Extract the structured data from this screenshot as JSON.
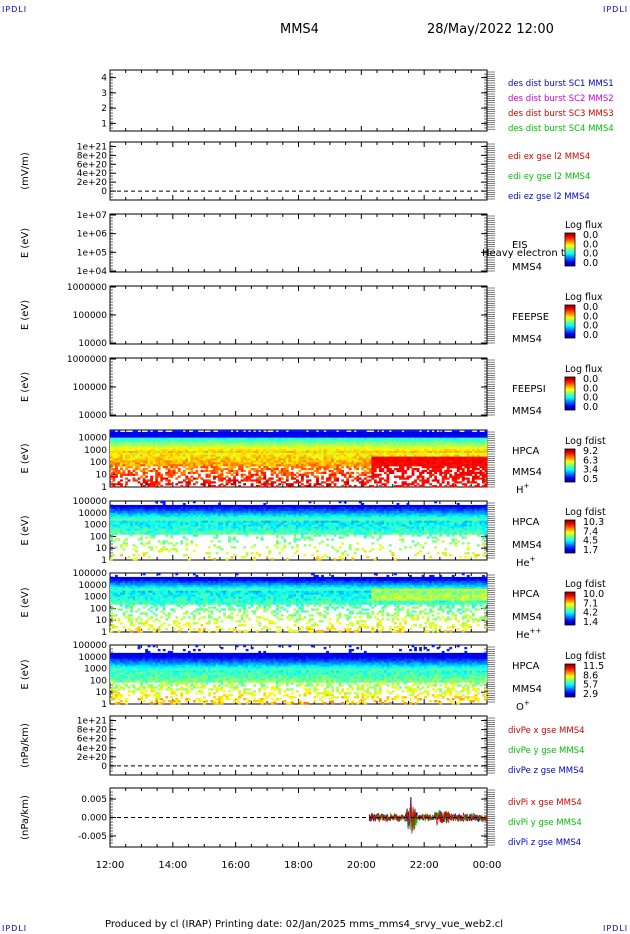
{
  "corners": {
    "tl": "IPDLI",
    "tr": "IPDLI",
    "bl": "IPDLI",
    "br": "IPDLI"
  },
  "header": {
    "spacecraft": "MMS4",
    "datetime": "28/May/2022 12:00"
  },
  "footer": "Produced by cl (IRAP)   Printing date: 02/Jan/2025   mms_mms4_srvy_vue_web2.cl",
  "colors": {
    "MMS1": "#0000c8",
    "MMS2": "#d000d0",
    "MMS3": "#d00000",
    "MMS4": "#00c000",
    "x": "#d00000",
    "y": "#00c000",
    "z": "#0000c8"
  },
  "chart_data": {
    "type": "multi-panel",
    "xlabel": "",
    "xticks": [
      "12:00",
      "14:00",
      "16:00",
      "18:00",
      "20:00",
      "22:00",
      "00:00"
    ],
    "xlim": [
      "12:00",
      "00:00"
    ],
    "panels": [
      {
        "id": "des-dist",
        "type": "line",
        "ylabel": "",
        "ylim": [
          0.5,
          4.5
        ],
        "yticks": [
          "1",
          "2",
          "3",
          "4"
        ],
        "legend": [
          {
            "name": "des dist burst SC1 MMS1",
            "color": "#0000c8"
          },
          {
            "name": "des dist burst SC2 MMS2",
            "color": "#d000d0"
          },
          {
            "name": "des dist burst SC3 MMS3",
            "color": "#d00000"
          },
          {
            "name": "des dist burst SC4 MMS4",
            "color": "#00c000"
          }
        ]
      },
      {
        "id": "edi",
        "type": "line",
        "ylabel": "(mV/m)",
        "ylim": [
          -2e+20,
          1.1e+21
        ],
        "yticks": [
          "1e+21",
          "8e+20",
          "6e+20",
          "4e+20",
          "2e+20",
          "0"
        ],
        "legend": [
          {
            "name": "edi ex gse l2 MMS4",
            "color": "#d00000"
          },
          {
            "name": "edi ey gse l2 MMS4",
            "color": "#00c000"
          },
          {
            "name": "edi ez gse l2 MMS4",
            "color": "#0000c8"
          }
        ]
      },
      {
        "id": "eis",
        "type": "heatmap",
        "ylabel": "E (eV)",
        "yticks": [
          "1e+07",
          "1e+06",
          "1e+05",
          "1e+04"
        ],
        "labels": [
          "EIS",
          "MMS4"
        ],
        "overlay": "Heavy electron to",
        "colorbar": {
          "title": "Log flux",
          "ticks": [
            "0.0",
            "0.0",
            "0.0",
            "0.0"
          ]
        }
      },
      {
        "id": "feepse",
        "type": "heatmap",
        "ylabel": "E (eV)",
        "yticks": [
          "1000000",
          "100000",
          "10000"
        ],
        "labels": [
          "FEEPSE",
          "MMS4"
        ],
        "colorbar": {
          "title": "Log flux",
          "ticks": [
            "0.0",
            "0.0",
            "0.0",
            "0.0"
          ]
        }
      },
      {
        "id": "feepsi",
        "type": "heatmap",
        "ylabel": "E (eV)",
        "yticks": [
          "1000000",
          "100000",
          "10000"
        ],
        "labels": [
          "FEEPSI",
          "MMS4"
        ],
        "colorbar": {
          "title": "Log flux",
          "ticks": [
            "0.0",
            "0.0",
            "0.0",
            "0.0"
          ]
        }
      },
      {
        "id": "hpca-h",
        "type": "heatmap",
        "ylabel": "E (eV)",
        "yticks": [
          "10000",
          "1000",
          "100",
          "10",
          "1"
        ],
        "ylim": [
          1,
          40000
        ],
        "log": true,
        "labels": [
          "HPCA",
          "MMS4"
        ],
        "species": "H",
        "charge": "+",
        "colorbar": {
          "title": "Log fdist",
          "ticks": [
            "9.2",
            "6.3",
            "3.4",
            "0.5"
          ]
        }
      },
      {
        "id": "hpca-he1",
        "type": "heatmap",
        "ylabel": "E (eV)",
        "yticks": [
          "100000",
          "10000",
          "1000",
          "100",
          "10",
          "1"
        ],
        "ylim": [
          1,
          100000
        ],
        "log": true,
        "labels": [
          "HPCA",
          "MMS4"
        ],
        "species": "He",
        "charge": "+",
        "colorbar": {
          "title": "Log fdist",
          "ticks": [
            "10.3",
            "7.4",
            "4.5",
            "1.7"
          ]
        }
      },
      {
        "id": "hpca-he2",
        "type": "heatmap",
        "ylabel": "E (eV)",
        "yticks": [
          "100000",
          "10000",
          "1000",
          "100",
          "10",
          "1"
        ],
        "ylim": [
          1,
          100000
        ],
        "log": true,
        "labels": [
          "HPCA",
          "MMS4"
        ],
        "species": "He",
        "charge": "++",
        "colorbar": {
          "title": "Log fdist",
          "ticks": [
            "10.0",
            "7.1",
            "4.2",
            "1.4"
          ]
        }
      },
      {
        "id": "hpca-o",
        "type": "heatmap",
        "ylabel": "E (eV)",
        "yticks": [
          "100000",
          "10000",
          "1000",
          "100",
          "10",
          "1"
        ],
        "ylim": [
          1,
          100000
        ],
        "log": true,
        "labels": [
          "HPCA",
          "MMS4"
        ],
        "species": "O",
        "charge": "+",
        "colorbar": {
          "title": "Log fdist",
          "ticks": [
            "11.5",
            "8.6",
            "5.7",
            "2.9"
          ]
        }
      },
      {
        "id": "divpe",
        "type": "line",
        "ylabel": "(nPa/km)",
        "ylim": [
          -2e+20,
          1.1e+21
        ],
        "yticks": [
          "1e+21",
          "8e+20",
          "6e+20",
          "4e+20",
          "2e+20",
          "0"
        ],
        "legend": [
          {
            "name": "divPe x gse MMS4",
            "color": "#d00000"
          },
          {
            "name": "divPe y gse MMS4",
            "color": "#00c000"
          },
          {
            "name": "divPe z gse MMS4",
            "color": "#0000c8"
          }
        ]
      },
      {
        "id": "divpi",
        "type": "line",
        "ylabel": "(nPa/km)",
        "ylim": [
          -0.008,
          0.008
        ],
        "yticks": [
          "0.005",
          "0.000",
          "-0.005"
        ],
        "legend": [
          {
            "name": "divPi x gse MMS4",
            "color": "#d00000"
          },
          {
            "name": "divPi y gse MMS4",
            "color": "#00c000"
          },
          {
            "name": "divPi z gse MMS4",
            "color": "#0000c8"
          }
        ],
        "data_start": "20:15",
        "data_end": "00:00",
        "spike_time": "21:35",
        "spike_peak": 0.006
      }
    ]
  }
}
